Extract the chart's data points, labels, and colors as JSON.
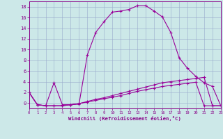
{
  "xlabel": "Windchill (Refroidissement éolien,°C)",
  "background_color": "#cce8e8",
  "grid_color": "#99aacc",
  "line_color": "#990099",
  "tick_color": "#880088",
  "xlim": [
    0,
    23
  ],
  "ylim": [
    -1.0,
    19.0
  ],
  "xticks": [
    0,
    1,
    2,
    3,
    4,
    5,
    6,
    7,
    8,
    9,
    10,
    11,
    12,
    13,
    14,
    15,
    16,
    17,
    18,
    19,
    20,
    21,
    22,
    23
  ],
  "yticks": [
    0,
    2,
    4,
    6,
    8,
    10,
    12,
    14,
    16,
    18
  ],
  "line1_x": [
    0,
    1,
    2,
    3,
    4,
    5,
    6,
    7,
    8,
    9,
    10,
    11,
    12,
    13,
    14,
    15,
    16,
    17,
    18,
    19,
    20,
    21,
    22,
    23
  ],
  "line1_y": [
    2.0,
    -0.3,
    -0.5,
    3.8,
    -0.3,
    -0.3,
    -0.2,
    9.0,
    13.2,
    15.2,
    17.0,
    17.2,
    17.5,
    18.2,
    18.2,
    17.2,
    16.1,
    13.2,
    8.5,
    6.5,
    5.0,
    3.8,
    3.1,
    -0.5
  ],
  "line2_x": [
    0,
    1,
    2,
    3,
    4,
    5,
    6,
    7,
    8,
    9,
    10,
    11,
    12,
    13,
    14,
    15,
    16,
    17,
    18,
    19,
    20,
    21,
    22,
    23
  ],
  "line2_y": [
    2.0,
    -0.3,
    -0.5,
    -0.5,
    -0.5,
    -0.3,
    -0.1,
    0.3,
    0.7,
    1.0,
    1.4,
    1.8,
    2.2,
    2.6,
    3.0,
    3.4,
    3.8,
    4.0,
    4.2,
    4.4,
    4.6,
    4.8,
    -0.5,
    -0.5
  ],
  "line3_x": [
    0,
    1,
    2,
    3,
    4,
    5,
    6,
    7,
    8,
    9,
    10,
    11,
    12,
    13,
    14,
    15,
    16,
    17,
    18,
    19,
    20,
    21,
    22,
    23
  ],
  "line3_y": [
    2.0,
    -0.3,
    -0.5,
    -0.5,
    -0.5,
    -0.3,
    -0.1,
    0.2,
    0.5,
    0.8,
    1.1,
    1.4,
    1.8,
    2.2,
    2.5,
    2.8,
    3.1,
    3.3,
    3.5,
    3.7,
    3.9,
    -0.5,
    -0.5,
    -0.5
  ]
}
